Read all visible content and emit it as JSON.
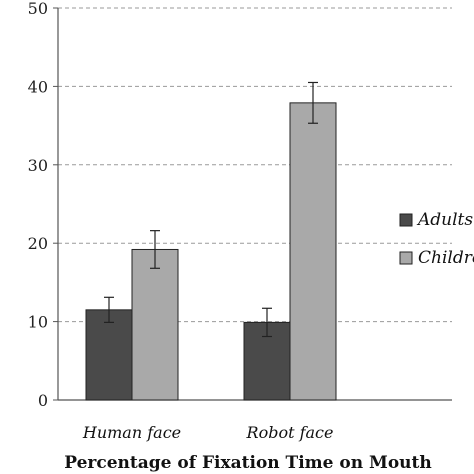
{
  "chart_data": {
    "type": "bar",
    "title": "",
    "xlabel": "Percentage of Fixation Time on Mouth",
    "ylabel": "",
    "categories": [
      "Human face",
      "Robot face"
    ],
    "series": [
      {
        "name": "Adults",
        "values": [
          11.5,
          9.9
        ],
        "errors": [
          1.6,
          1.8
        ],
        "color": "#4a4a4a"
      },
      {
        "name": "Children",
        "values": [
          19.2,
          37.9
        ],
        "errors": [
          2.4,
          2.6
        ],
        "color": "#a9a9a9"
      }
    ],
    "ylim": [
      0,
      50
    ],
    "yticks": [
      0,
      10,
      20,
      30,
      40,
      50
    ],
    "grid": true,
    "legend": "right"
  }
}
